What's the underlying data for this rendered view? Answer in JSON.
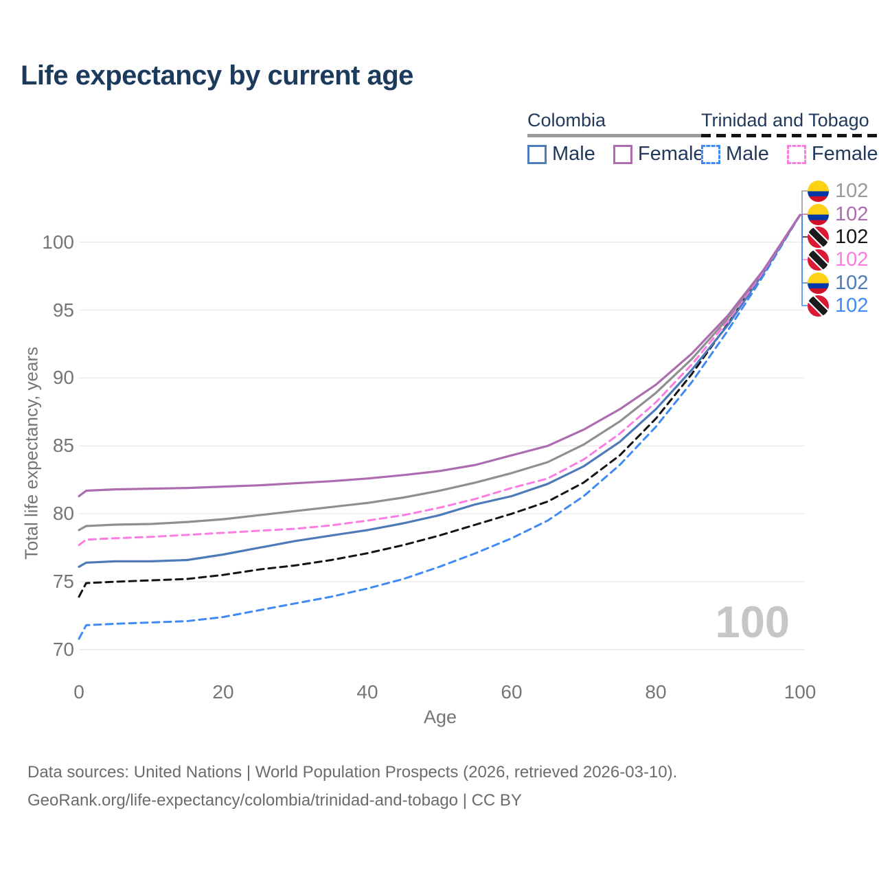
{
  "title": "Life expectancy by current age",
  "legend": {
    "groups": [
      {
        "name": "Colombia",
        "line_style": "solid",
        "line_color": "#9a9a9a",
        "entries": [
          {
            "label": "Male",
            "color": "#4d7ab8",
            "dash": false
          },
          {
            "label": "Female",
            "color": "#ad6bb0",
            "dash": false
          }
        ]
      },
      {
        "name": "Trinidad and Tobago",
        "line_style": "dashed",
        "line_color": "#141414",
        "entries": [
          {
            "label": "Male",
            "color": "#3f8af5",
            "dash": true
          },
          {
            "label": "Female",
            "color": "#fb7ce3",
            "dash": true
          }
        ]
      }
    ]
  },
  "chart_data": {
    "type": "line",
    "title": "Life expectancy by current age",
    "xlabel": "Age",
    "ylabel": "Total life expectancy, years",
    "x_ticks": [
      0,
      20,
      40,
      60,
      80,
      100
    ],
    "y_ticks": [
      70,
      75,
      80,
      85,
      90,
      95,
      100
    ],
    "xlim": [
      0,
      100
    ],
    "ylim": [
      69,
      102.5
    ],
    "grid": "horizontal",
    "legend_position": "top-right",
    "ages": [
      0,
      1,
      5,
      10,
      15,
      20,
      25,
      30,
      35,
      40,
      45,
      50,
      55,
      60,
      65,
      70,
      75,
      80,
      85,
      90,
      95,
      100
    ],
    "series": [
      {
        "name": "Trinidad and Tobago Male",
        "country": "Trinidad and Tobago",
        "sex": "Male",
        "color": "#3f8af5",
        "dash": true,
        "values": [
          70.8,
          71.8,
          71.9,
          72.0,
          72.1,
          72.4,
          72.9,
          73.4,
          73.9,
          74.5,
          75.2,
          76.1,
          77.1,
          78.2,
          79.5,
          81.3,
          83.6,
          86.4,
          89.7,
          93.5,
          97.6,
          102
        ]
      },
      {
        "name": "Trinidad and Tobago Both sexes",
        "country": "Trinidad and Tobago",
        "sex": "Both",
        "color": "#141414",
        "dash": true,
        "values": [
          73.9,
          74.9,
          75.0,
          75.1,
          75.2,
          75.5,
          75.9,
          76.2,
          76.6,
          77.1,
          77.7,
          78.4,
          79.2,
          80.0,
          80.9,
          82.3,
          84.3,
          87.0,
          90.3,
          94.0,
          97.9,
          102
        ]
      },
      {
        "name": "Colombia Male",
        "country": "Colombia",
        "sex": "Male",
        "color": "#4d7ab8",
        "dash": false,
        "values": [
          76.1,
          76.4,
          76.5,
          76.5,
          76.6,
          77.0,
          77.5,
          78.0,
          78.4,
          78.8,
          79.3,
          79.9,
          80.7,
          81.3,
          82.2,
          83.5,
          85.3,
          87.7,
          90.6,
          93.9,
          97.8,
          102
        ]
      },
      {
        "name": "Trinidad and Tobago Female",
        "country": "Trinidad and Tobago",
        "sex": "Female",
        "color": "#fb7ce3",
        "dash": true,
        "values": [
          77.7,
          78.1,
          78.2,
          78.3,
          78.45,
          78.6,
          78.75,
          78.9,
          79.15,
          79.5,
          79.9,
          80.45,
          81.1,
          81.9,
          82.6,
          84.0,
          85.9,
          88.2,
          91.0,
          94.2,
          97.9,
          102
        ]
      },
      {
        "name": "Colombia Both sexes",
        "country": "Colombia",
        "sex": "Both",
        "color": "#8f8f8f",
        "dash": false,
        "values": [
          78.8,
          79.1,
          79.2,
          79.25,
          79.4,
          79.6,
          79.9,
          80.2,
          80.5,
          80.8,
          81.2,
          81.7,
          82.3,
          83.0,
          83.8,
          85.1,
          86.8,
          88.9,
          91.4,
          94.4,
          98.0,
          102
        ]
      },
      {
        "name": "Colombia Female",
        "country": "Colombia",
        "sex": "Female",
        "color": "#ad6bb0",
        "dash": false,
        "values": [
          81.3,
          81.7,
          81.8,
          81.85,
          81.9,
          82.0,
          82.1,
          82.25,
          82.4,
          82.6,
          82.85,
          83.15,
          83.6,
          84.3,
          85.0,
          86.2,
          87.7,
          89.5,
          91.8,
          94.6,
          98.0,
          102
        ]
      }
    ]
  },
  "end_labels": {
    "items": [
      {
        "flag": "colombia",
        "value": "102",
        "color": "#9a9a9a",
        "series": "Colombia Both sexes"
      },
      {
        "flag": "colombia",
        "value": "102",
        "color": "#ad6bb0",
        "series": "Colombia Female"
      },
      {
        "flag": "trinidad-and-tobago",
        "value": "102",
        "color": "#141414",
        "series": "Trinidad and Tobago Both sexes"
      },
      {
        "flag": "trinidad-and-tobago",
        "value": "102",
        "color": "#fb7ce3",
        "series": "Trinidad and Tobago Female"
      },
      {
        "flag": "colombia",
        "value": "102",
        "color": "#4d7ab8",
        "series": "Colombia Male"
      },
      {
        "flag": "trinidad-and-tobago",
        "value": "102",
        "color": "#3f8af5",
        "series": "Trinidad and Tobago Male"
      }
    ]
  },
  "flags": {
    "colombia": {
      "yellow": "#fcd116",
      "blue": "#0038a8",
      "red": "#ce1126"
    },
    "trinidad_and_tobago": {
      "red": "#da1a35",
      "white": "#ffffff",
      "black": "#1a1a1a"
    }
  },
  "watermark": "100",
  "caption": {
    "line1": "Data sources: United Nations | World Population Prospects (2026, retrieved 2026-03-10).",
    "line2": "GeoRank.org/life-expectancy/colombia/trinidad-and-tobago | CC BY"
  },
  "colors": {
    "title": "#1b3a5c",
    "axis_text": "#757575",
    "gridline": "#e9e9e9",
    "caption": "#6b6b6b",
    "watermark": "#c6c6c6"
  }
}
